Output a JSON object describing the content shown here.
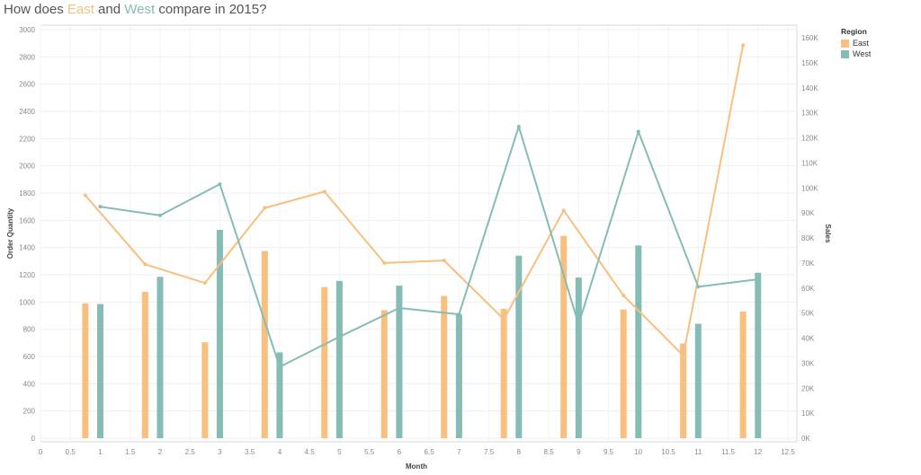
{
  "title": {
    "prefix": "How does ",
    "east": "East",
    "mid": " and ",
    "west": "West",
    "suffix": " compare in 2015?"
  },
  "colors": {
    "east": "#f9bf7e",
    "west": "#86bcb6"
  },
  "legend": {
    "title": "Region",
    "items": [
      "East",
      "West"
    ]
  },
  "chart_data": {
    "type": "bar",
    "combo": "bar + line (dual axis)",
    "xlabel": "Month",
    "ylabel_left": "Order Quantity",
    "ylabel_right": "Sales",
    "xlim": [
      0,
      12.5
    ],
    "ylim_left": [
      0,
      3000
    ],
    "ylim_right": [
      0,
      165000
    ],
    "x_ticks": [
      "0",
      "0.5",
      "1",
      "1.5",
      "2",
      "2.5",
      "3",
      "3.5",
      "4",
      "4.5",
      "5",
      "5.5",
      "6",
      "6.5",
      "7",
      "7.5",
      "8",
      "8.5",
      "9",
      "9.5",
      "10",
      "10.5",
      "11",
      "11.5",
      "12",
      "12.5"
    ],
    "left_ticks": [
      "0",
      "200",
      "400",
      "600",
      "800",
      "1000",
      "1200",
      "1400",
      "1600",
      "1800",
      "2000",
      "2200",
      "2400",
      "2600",
      "2800",
      "3000"
    ],
    "right_ticks": [
      "0K",
      "10K",
      "20K",
      "30K",
      "40K",
      "50K",
      "60K",
      "70K",
      "80K",
      "90K",
      "100K",
      "110K",
      "120K",
      "130K",
      "140K",
      "150K",
      "160K"
    ],
    "grid": true,
    "legend_position": "right",
    "bars_order_quantity": [
      {
        "name": "East",
        "x": [
          0.75,
          1.75,
          2.75,
          3.75,
          4.75,
          5.75,
          6.75,
          7.75,
          8.75,
          9.75,
          10.75,
          11.75
        ],
        "values": [
          990,
          1075,
          705,
          1375,
          1110,
          940,
          1045,
          950,
          1485,
          945,
          695,
          930
        ]
      },
      {
        "name": "West",
        "x": [
          1,
          2,
          3,
          4,
          5,
          6,
          7,
          8,
          9,
          10,
          11,
          12
        ],
        "values": [
          985,
          1185,
          1530,
          630,
          1155,
          1120,
          910,
          1340,
          1180,
          1415,
          840,
          1215
        ]
      }
    ],
    "lines_sales": [
      {
        "name": "East",
        "x": [
          0.75,
          1.75,
          2.75,
          3.75,
          4.75,
          5.75,
          6.75,
          7.75,
          8.75,
          9.75,
          10.75,
          11.75
        ],
        "values": [
          97000,
          69500,
          62000,
          92000,
          98500,
          70000,
          71000,
          47500,
          91000,
          57000,
          33000,
          157000
        ]
      },
      {
        "name": "West",
        "x": [
          1,
          2,
          3,
          4,
          5,
          6,
          7,
          8,
          9,
          10,
          11,
          12
        ],
        "values": [
          92500,
          89000,
          101500,
          28500,
          40500,
          52000,
          49500,
          124500,
          45500,
          122500,
          60500,
          63500
        ]
      }
    ]
  }
}
